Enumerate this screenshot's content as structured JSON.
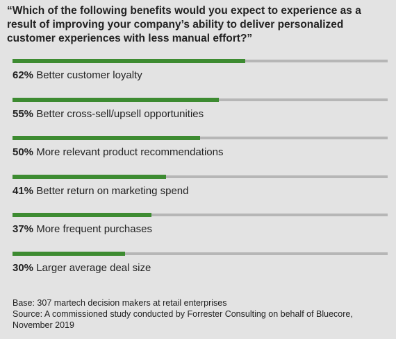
{
  "title": "“Which of the following benefits would you expect to experience as a result of improving your company’s ability to deliver personalized customer experiences with less manual effort?”",
  "chart_data": {
    "type": "bar",
    "orientation": "horizontal",
    "categories": [
      "Better customer loyalty",
      "Better cross-sell/upsell opportunities",
      "More relevant product recommendations",
      "Better return on marketing spend",
      "More frequent purchases",
      "Larger average deal size"
    ],
    "values": [
      62,
      55,
      50,
      41,
      37,
      30
    ],
    "value_labels": [
      "62%",
      "55%",
      "50%",
      "41%",
      "37%",
      "30%"
    ],
    "xlim": [
      0,
      100
    ],
    "grid": false,
    "colors": {
      "fill": "#3d8b31",
      "track": "#b6b6b6",
      "background": "#e3e3e3"
    }
  },
  "footer": {
    "base": "Base: 307 martech decision makers at retail enterprises",
    "source": "Source: A commissioned study conducted by Forrester Consulting on behalf of Bluecore, November 2019"
  }
}
